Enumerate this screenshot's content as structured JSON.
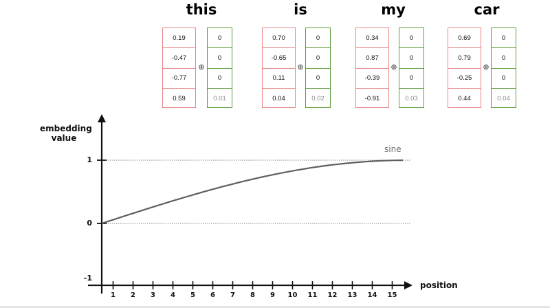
{
  "tokens": [
    {
      "word": "this",
      "embedding": [
        "0.19",
        "-0.47",
        "-0.77",
        "0.59"
      ],
      "positional": [
        "0",
        "0",
        "0",
        "0.01"
      ]
    },
    {
      "word": "is",
      "embedding": [
        "0.70",
        "-0.65",
        "0.11",
        "0.04"
      ],
      "positional": [
        "0",
        "0",
        "0",
        "0.02"
      ]
    },
    {
      "word": "my",
      "embedding": [
        "0.34",
        "0.87",
        "-0.39",
        "-0.91"
      ],
      "positional": [
        "0",
        "0",
        "0",
        "0.03"
      ]
    },
    {
      "word": "car",
      "embedding": [
        "0.69",
        "0.79",
        "-0.25",
        "0.44"
      ],
      "positional": [
        "0",
        "0",
        "0",
        "0.04"
      ]
    }
  ],
  "plus_symbol": "⊕",
  "graph": {
    "y_label_line1": "embedding",
    "y_label_line2": "value",
    "x_label": "position",
    "y_ticks": [
      "1",
      "0",
      "-1"
    ],
    "x_ticks": [
      "1",
      "2",
      "3",
      "4",
      "5",
      "6",
      "7",
      "8",
      "9",
      "10",
      "11",
      "12",
      "13",
      "14",
      "15"
    ],
    "curve_label": "sine",
    "curve_color": "#5f5f5f",
    "embedding_border_color": "#e88585",
    "positional_border_color": "#5d9a3a"
  }
}
